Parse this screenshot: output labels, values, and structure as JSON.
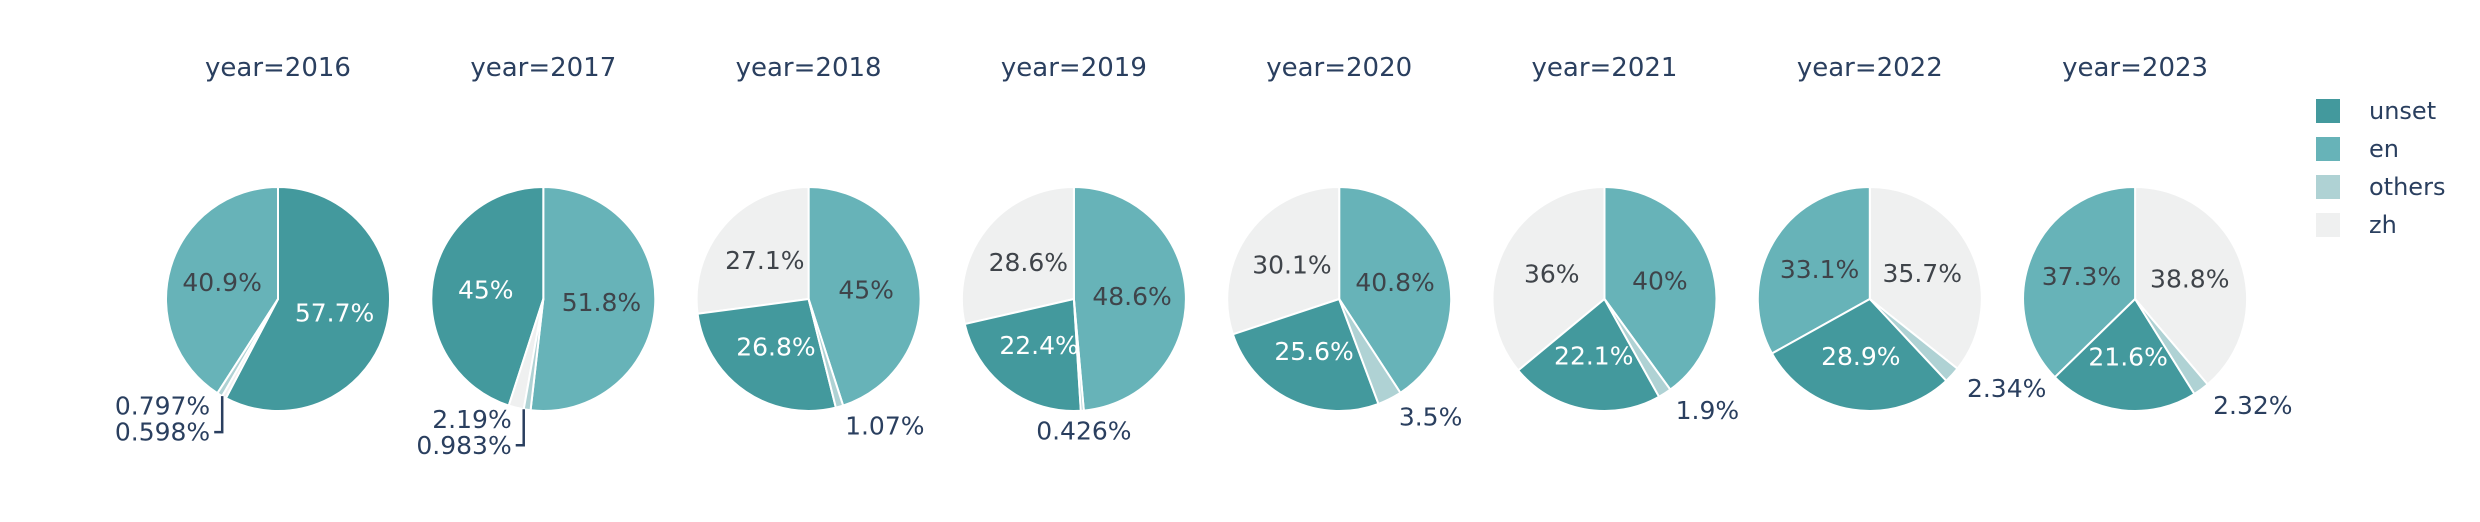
{
  "figure": {
    "background": "#ffffff",
    "text_colors": {
      "title": "#2A3F5F",
      "outside_label": "#2A3F5F",
      "inside_label_on_light": "#3F444A",
      "inside_label_on_dark": "#FFFFFF"
    }
  },
  "chart_data": {
    "type": "pie",
    "facet_field": "year",
    "legend": {
      "position": "right",
      "entries": [
        "unset",
        "en",
        "others",
        "zh"
      ]
    },
    "colors": {
      "unset": "#43999D",
      "en": "#67B3B8",
      "others": "#AFD2D4",
      "zh": "#EFF0F0"
    },
    "facets": [
      {
        "title": "year=2016",
        "stacked_callout": true,
        "slices": [
          {
            "category": "unset",
            "value": 57.7,
            "label": "57.7%"
          },
          {
            "category": "en",
            "value": 40.9,
            "label": "40.9%"
          },
          {
            "category": "others",
            "value": 0.797,
            "label": "0.797%"
          },
          {
            "category": "zh",
            "value": 0.598,
            "label": "0.598%"
          }
        ]
      },
      {
        "title": "year=2017",
        "stacked_callout": true,
        "slices": [
          {
            "category": "en",
            "value": 51.8,
            "label": "51.8%"
          },
          {
            "category": "unset",
            "value": 45,
            "label": "45%"
          },
          {
            "category": "zh",
            "value": 2.19,
            "label": "2.19%"
          },
          {
            "category": "others",
            "value": 0.983,
            "label": "0.983%"
          }
        ]
      },
      {
        "title": "year=2018",
        "stacked_callout": false,
        "slices": [
          {
            "category": "en",
            "value": 45,
            "label": "45%"
          },
          {
            "category": "zh",
            "value": 27.1,
            "label": "27.1%"
          },
          {
            "category": "unset",
            "value": 26.8,
            "label": "26.8%"
          },
          {
            "category": "others",
            "value": 1.07,
            "label": "1.07%"
          }
        ]
      },
      {
        "title": "year=2019",
        "stacked_callout": false,
        "slices": [
          {
            "category": "en",
            "value": 48.6,
            "label": "48.6%"
          },
          {
            "category": "zh",
            "value": 28.6,
            "label": "28.6%"
          },
          {
            "category": "unset",
            "value": 22.4,
            "label": "22.4%"
          },
          {
            "category": "others",
            "value": 0.426,
            "label": "0.426%"
          }
        ]
      },
      {
        "title": "year=2020",
        "stacked_callout": false,
        "slices": [
          {
            "category": "en",
            "value": 40.8,
            "label": "40.8%"
          },
          {
            "category": "zh",
            "value": 30.1,
            "label": "30.1%"
          },
          {
            "category": "unset",
            "value": 25.6,
            "label": "25.6%"
          },
          {
            "category": "others",
            "value": 3.5,
            "label": "3.5%"
          }
        ]
      },
      {
        "title": "year=2021",
        "stacked_callout": false,
        "slices": [
          {
            "category": "en",
            "value": 40,
            "label": "40%"
          },
          {
            "category": "zh",
            "value": 36,
            "label": "36%"
          },
          {
            "category": "unset",
            "value": 22.1,
            "label": "22.1%"
          },
          {
            "category": "others",
            "value": 1.9,
            "label": "1.9%"
          }
        ]
      },
      {
        "title": "year=2022",
        "stacked_callout": false,
        "slices": [
          {
            "category": "zh",
            "value": 35.7,
            "label": "35.7%"
          },
          {
            "category": "en",
            "value": 33.1,
            "label": "33.1%"
          },
          {
            "category": "unset",
            "value": 28.9,
            "label": "28.9%"
          },
          {
            "category": "others",
            "value": 2.34,
            "label": "2.34%"
          }
        ]
      },
      {
        "title": "year=2023",
        "stacked_callout": false,
        "slices": [
          {
            "category": "zh",
            "value": 38.8,
            "label": "38.8%"
          },
          {
            "category": "en",
            "value": 37.3,
            "label": "37.3%"
          },
          {
            "category": "unset",
            "value": 21.6,
            "label": "21.6%"
          },
          {
            "category": "others",
            "value": 2.32,
            "label": "2.32%"
          }
        ]
      }
    ]
  }
}
